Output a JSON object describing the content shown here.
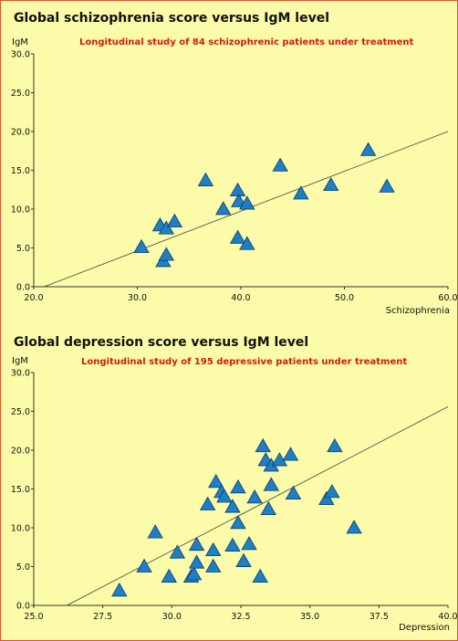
{
  "chart_data": [
    {
      "type": "scatter",
      "title": "Global schizophrenia score versus IgM level",
      "subtitle": "Longitudinal study of 84 schizophrenic patients under treatment",
      "xlabel": "Schizophrenia",
      "ylabel": "IgM",
      "xlim": [
        20,
        60
      ],
      "ylim": [
        0,
        30
      ],
      "x_ticks": [
        "20.0",
        "30.0",
        "40.0",
        "50.0",
        "60.0"
      ],
      "y_ticks": [
        "0.0",
        "5.0",
        "10.0",
        "15.0",
        "20.0",
        "25.0",
        "30.0"
      ],
      "trendline": [
        [
          21.0,
          0.0
        ],
        [
          60.0,
          20.0
        ]
      ],
      "points": [
        {
          "x": 30.4,
          "y": 5.1
        },
        {
          "x": 32.2,
          "y": 7.9
        },
        {
          "x": 32.8,
          "y": 7.5
        },
        {
          "x": 32.5,
          "y": 3.3
        },
        {
          "x": 32.8,
          "y": 4.1
        },
        {
          "x": 33.6,
          "y": 8.4
        },
        {
          "x": 36.6,
          "y": 13.7
        },
        {
          "x": 38.3,
          "y": 10.0
        },
        {
          "x": 39.7,
          "y": 12.4
        },
        {
          "x": 39.8,
          "y": 11.0
        },
        {
          "x": 40.6,
          "y": 10.7
        },
        {
          "x": 39.7,
          "y": 6.3
        },
        {
          "x": 40.6,
          "y": 5.5
        },
        {
          "x": 43.8,
          "y": 15.6
        },
        {
          "x": 45.8,
          "y": 12.0
        },
        {
          "x": 48.7,
          "y": 13.1
        },
        {
          "x": 52.3,
          "y": 17.6
        },
        {
          "x": 54.1,
          "y": 12.9
        }
      ]
    },
    {
      "type": "scatter",
      "title": "Global depression score versus IgM level",
      "subtitle": "Longitudinal study of 195 depressive patients under treatment",
      "xlabel": "Depression",
      "ylabel": "IgM",
      "xlim": [
        25,
        40
      ],
      "ylim": [
        0,
        30
      ],
      "x_ticks": [
        "25.0",
        "27.5",
        "30.0",
        "32.5",
        "35.0",
        "37.5",
        "40.0"
      ],
      "y_ticks": [
        "0.0",
        "5.0",
        "10.0",
        "15.0",
        "20.0",
        "25.0",
        "30.0"
      ],
      "trendline": [
        [
          26.2,
          0.0
        ],
        [
          40.0,
          25.6
        ]
      ],
      "points": [
        {
          "x": 28.1,
          "y": 1.9
        },
        {
          "x": 29.0,
          "y": 5.0
        },
        {
          "x": 29.4,
          "y": 9.4
        },
        {
          "x": 29.9,
          "y": 3.7
        },
        {
          "x": 30.2,
          "y": 6.8
        },
        {
          "x": 30.7,
          "y": 3.7
        },
        {
          "x": 30.8,
          "y": 4.0
        },
        {
          "x": 30.9,
          "y": 5.5
        },
        {
          "x": 30.9,
          "y": 7.8
        },
        {
          "x": 31.3,
          "y": 13.0
        },
        {
          "x": 31.5,
          "y": 5.0
        },
        {
          "x": 31.5,
          "y": 7.1
        },
        {
          "x": 31.6,
          "y": 15.9
        },
        {
          "x": 31.8,
          "y": 14.6
        },
        {
          "x": 31.9,
          "y": 14.0
        },
        {
          "x": 32.2,
          "y": 12.7
        },
        {
          "x": 32.2,
          "y": 7.7
        },
        {
          "x": 32.4,
          "y": 15.2
        },
        {
          "x": 32.4,
          "y": 10.6
        },
        {
          "x": 32.6,
          "y": 5.7
        },
        {
          "x": 32.8,
          "y": 7.9
        },
        {
          "x": 33.0,
          "y": 13.9
        },
        {
          "x": 33.2,
          "y": 3.7
        },
        {
          "x": 33.3,
          "y": 20.5
        },
        {
          "x": 33.4,
          "y": 18.7
        },
        {
          "x": 33.5,
          "y": 12.4
        },
        {
          "x": 33.6,
          "y": 18.0
        },
        {
          "x": 33.6,
          "y": 15.5
        },
        {
          "x": 33.9,
          "y": 18.7
        },
        {
          "x": 34.3,
          "y": 19.4
        },
        {
          "x": 34.4,
          "y": 14.4
        },
        {
          "x": 35.6,
          "y": 13.7
        },
        {
          "x": 35.8,
          "y": 14.6
        },
        {
          "x": 35.9,
          "y": 20.5
        },
        {
          "x": 36.6,
          "y": 10.0
        }
      ]
    }
  ]
}
